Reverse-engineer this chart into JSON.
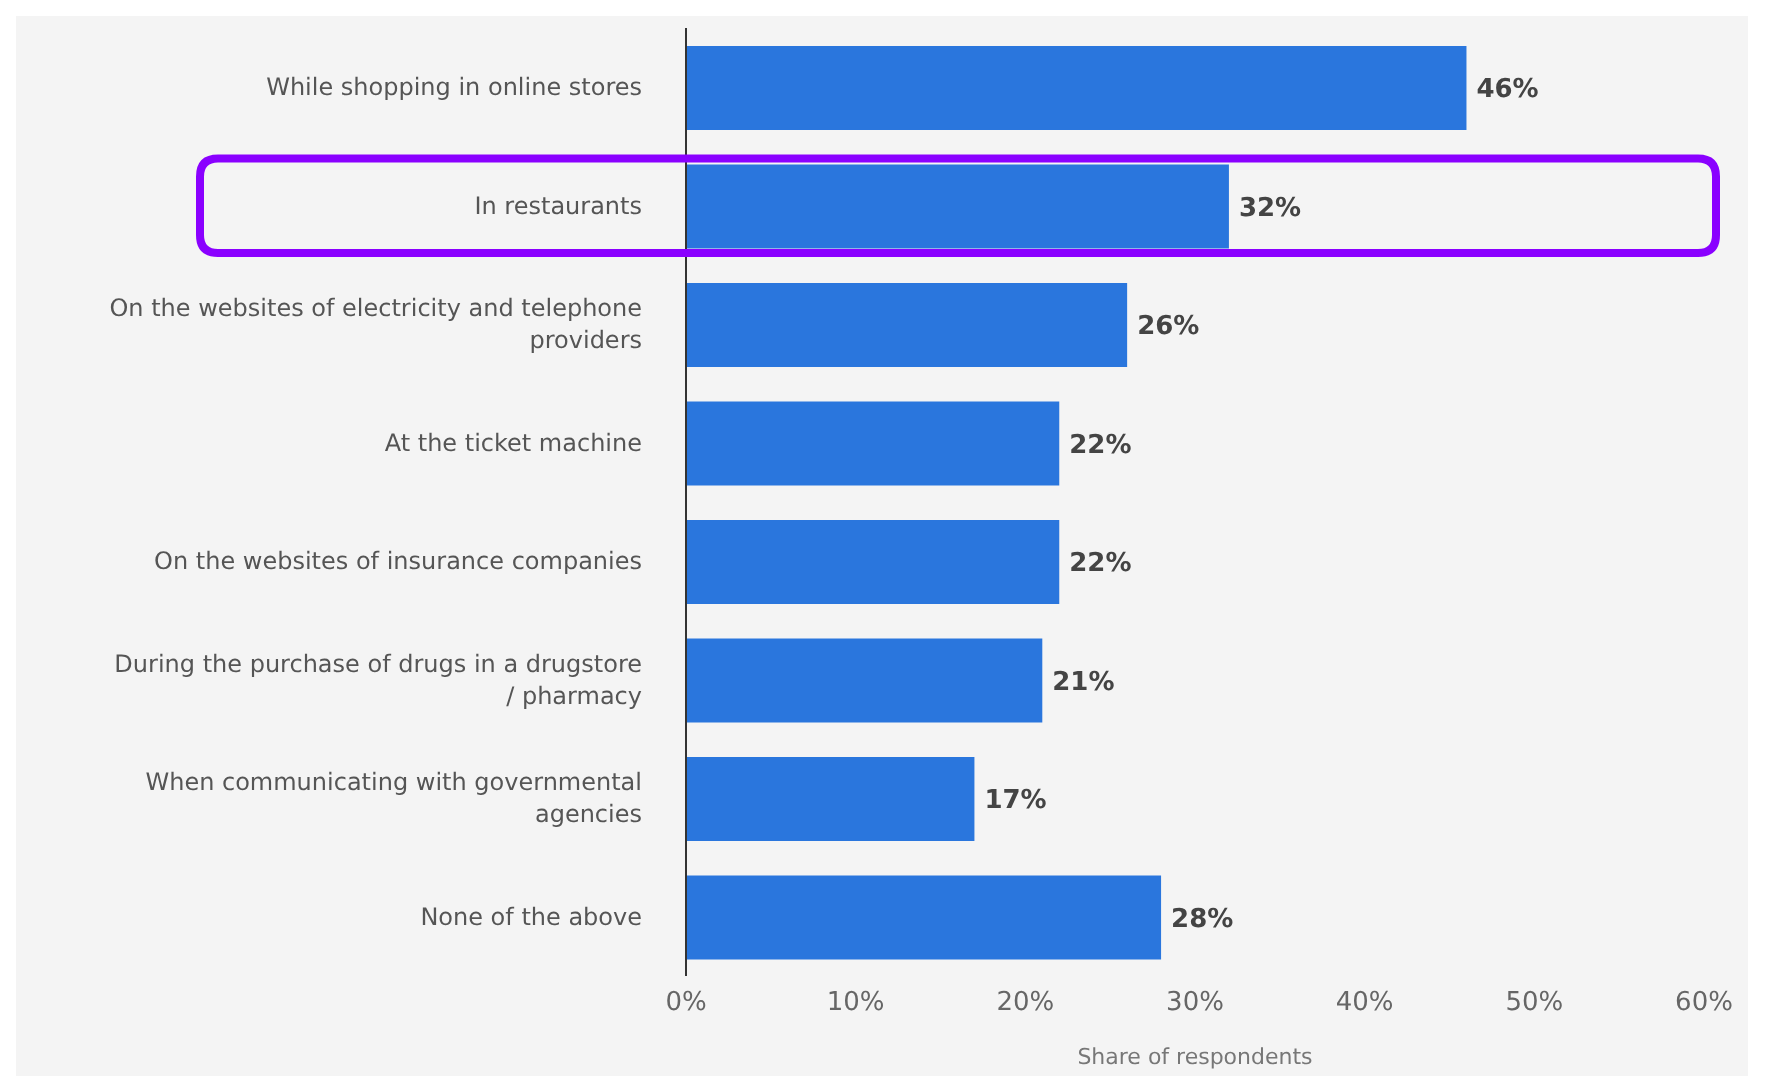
{
  "chart_data": {
    "type": "bar",
    "orientation": "horizontal",
    "xlabel": "Share of respondents",
    "categories": [
      "While shopping in online stores",
      "In restaurants",
      "On the websites of electricity and telephone providers",
      "At the ticket machine",
      "On the websites of insurance companies",
      "During the purchase of drugs in a drugstore / pharmacy",
      "When communicating with governmental agencies",
      "None of the above"
    ],
    "values": [
      46,
      32,
      26,
      22,
      22,
      21,
      17,
      28
    ],
    "value_labels": [
      "46%",
      "32%",
      "26%",
      "22%",
      "22%",
      "21%",
      "17%",
      "28%"
    ],
    "color": "#2a76dd",
    "xlim": [
      0,
      60
    ],
    "xticks": [
      {
        "value": 0,
        "label": "0%"
      },
      {
        "value": 10,
        "label": "10%"
      },
      {
        "value": 20,
        "label": "20%"
      },
      {
        "value": 30,
        "label": "30%"
      },
      {
        "value": 40,
        "label": "40%"
      },
      {
        "value": 50,
        "label": "50%"
      },
      {
        "value": 60,
        "label": "60%"
      }
    ],
    "bands": [
      {
        "axis": "y",
        "from": "In restaurants",
        "to": "In restaurants",
        "color": "#8a00ff"
      }
    ],
    "grid": false
  }
}
